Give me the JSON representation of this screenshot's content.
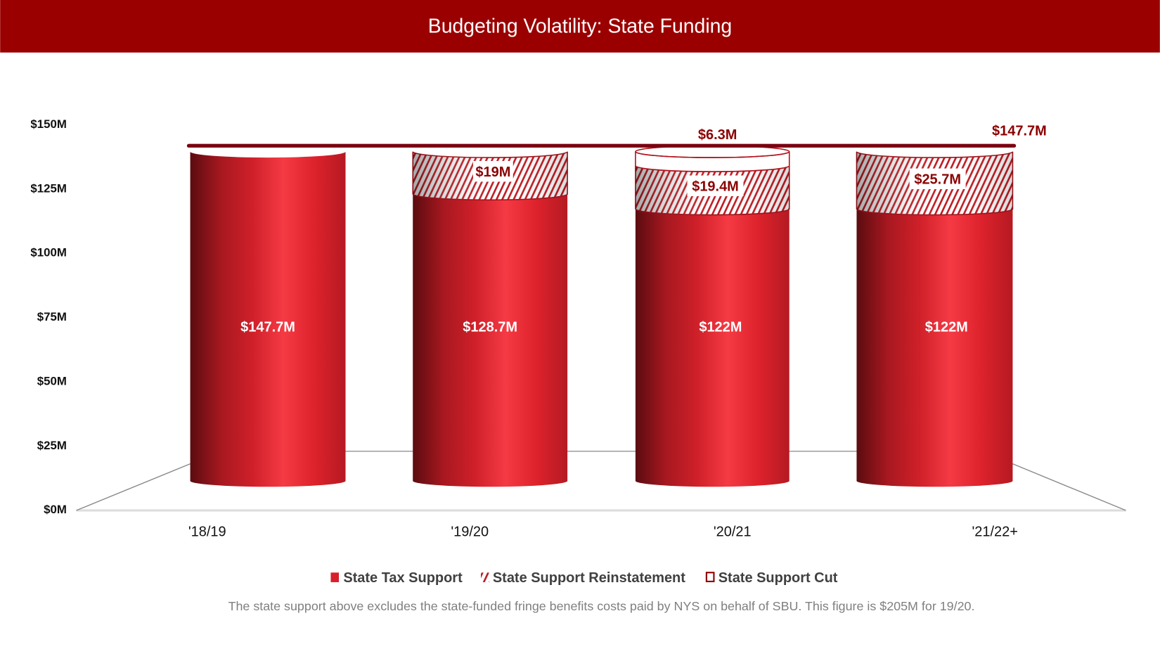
{
  "chart_data": {
    "type": "bar",
    "title": "Budgeting Volatility: State Funding",
    "categories": [
      "'18/19",
      "'19/20",
      "'20/21",
      "'21/22+"
    ],
    "series": [
      {
        "name": "State Tax Support",
        "values": [
          147.7,
          128.7,
          122,
          122
        ],
        "labels": [
          "$147.7M",
          "$128.7M",
          "$122M",
          "$122M"
        ],
        "color": "#d81f2a"
      },
      {
        "name": "State Support Reinstatement",
        "values": [
          0,
          19,
          19.4,
          25.7
        ],
        "labels": [
          "",
          "$19M",
          "$19.4M",
          "$25.7M"
        ],
        "pattern": "diagonal-hatch"
      },
      {
        "name": "State Support Cut",
        "values": [
          0,
          0,
          6.3,
          0
        ],
        "labels": [
          "",
          "",
          "$6.3M",
          ""
        ],
        "color": "#8b0000",
        "fill": "none"
      }
    ],
    "reference_line": {
      "value": 147.7,
      "label": "$147.7M",
      "color": "#7a0010"
    },
    "yaxis": {
      "ticks": [
        "$0M",
        "$25M",
        "$50M",
        "$75M",
        "$100M",
        "$125M",
        "$150M"
      ],
      "ylim": [
        0,
        150
      ]
    },
    "legend": {
      "position": "bottom"
    },
    "grid": false,
    "chart_style": "3d-cylinder",
    "note": "The state support above excludes the state-funded fringe benefits costs paid by NYS on behalf of SBU. This figure is $205M for 19/20.",
    "header_color": "#9b0000"
  }
}
